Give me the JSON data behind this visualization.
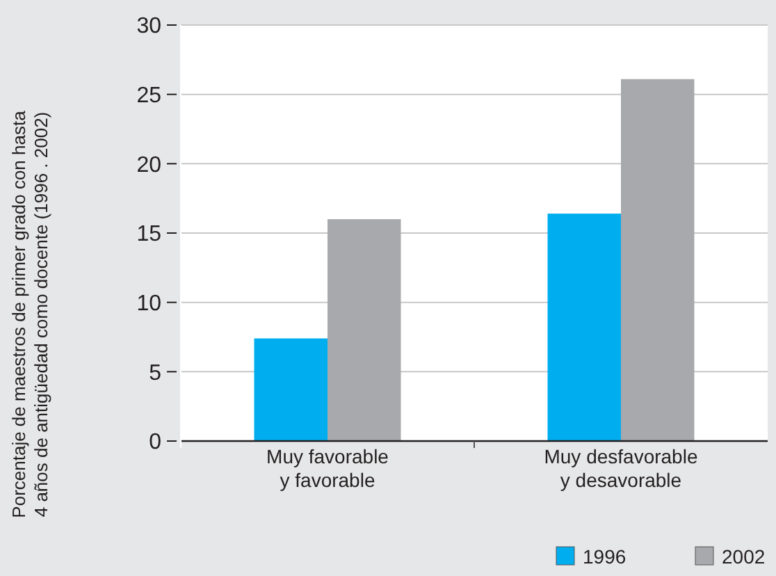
{
  "chart_data": {
    "type": "bar",
    "ylabel": "Porcentaje de maestros de primer grado con hasta\n4 años de antigüedad como docente (1996 . 2002)",
    "categories": [
      "Muy favorable\ny favorable",
      "Muy desfavorable\ny desavorable"
    ],
    "series": [
      {
        "name": "1996",
        "color": "#00aeef",
        "values": [
          7.4,
          16.4
        ]
      },
      {
        "name": "2002",
        "color": "#a7a9ac",
        "values": [
          16.0,
          26.1
        ]
      }
    ],
    "ylim": [
      0,
      30
    ],
    "yticks": [
      0,
      5,
      10,
      15,
      20,
      25,
      30
    ],
    "grid": "y",
    "legend": "bottom right"
  }
}
